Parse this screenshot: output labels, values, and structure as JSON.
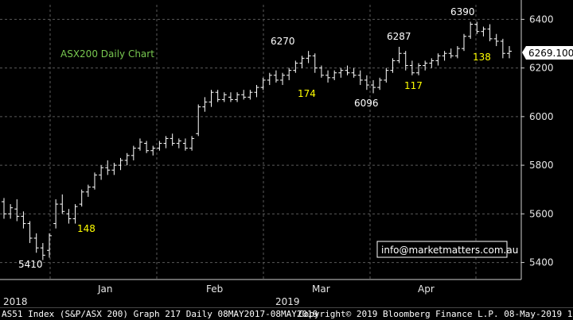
{
  "chart_data": {
    "type": "ohlc",
    "title": "ASX200 Daily Chart",
    "y_ticks": [
      5400,
      5600,
      5800,
      6000,
      6200,
      6400
    ],
    "ylim": [
      5330,
      6460
    ],
    "last_value_label": "6269.100",
    "month_labels": [
      "Jan",
      "Feb",
      "Mar",
      "Apr"
    ],
    "year_labels": [
      "2018",
      "2019"
    ],
    "annotations_white": [
      "5410",
      "6270",
      "6096",
      "6287",
      "6390"
    ],
    "annotations_yellow": [
      "148",
      "174",
      "117",
      "138"
    ],
    "watermark": "info@marketmatters.com.au",
    "series": [
      {
        "name": "",
        "ohlc": [
          [
            5650,
            5665,
            5580,
            5600
          ],
          [
            5600,
            5640,
            5580,
            5625
          ],
          [
            5620,
            5660,
            5570,
            5590
          ],
          [
            5590,
            5610,
            5540,
            5560
          ],
          [
            5560,
            5570,
            5480,
            5500
          ],
          [
            5500,
            5520,
            5440,
            5460
          ],
          [
            5460,
            5480,
            5410,
            5430
          ],
          [
            5450,
            5520,
            5420,
            5510
          ],
          [
            5560,
            5660,
            5540,
            5640
          ],
          [
            5640,
            5680,
            5600,
            5610
          ],
          [
            5600,
            5620,
            5560,
            5580
          ],
          [
            5580,
            5640,
            5560,
            5630
          ],
          [
            5640,
            5700,
            5630,
            5690
          ],
          [
            5690,
            5720,
            5670,
            5710
          ],
          [
            5710,
            5770,
            5700,
            5760
          ],
          [
            5760,
            5800,
            5740,
            5790
          ],
          [
            5790,
            5820,
            5760,
            5780
          ],
          [
            5780,
            5810,
            5760,
            5800
          ],
          [
            5800,
            5830,
            5780,
            5820
          ],
          [
            5820,
            5850,
            5800,
            5840
          ],
          [
            5840,
            5880,
            5820,
            5870
          ],
          [
            5870,
            5910,
            5860,
            5895
          ],
          [
            5890,
            5900,
            5850,
            5860
          ],
          [
            5860,
            5880,
            5840,
            5870
          ],
          [
            5870,
            5900,
            5860,
            5890
          ],
          [
            5890,
            5920,
            5870,
            5910
          ],
          [
            5910,
            5930,
            5880,
            5890
          ],
          [
            5890,
            5910,
            5870,
            5900
          ],
          [
            5890,
            5910,
            5860,
            5870
          ],
          [
            5870,
            5920,
            5860,
            5910
          ],
          [
            5930,
            6050,
            5920,
            6040
          ],
          [
            6040,
            6080,
            6020,
            6060
          ],
          [
            6060,
            6110,
            6040,
            6100
          ],
          [
            6100,
            6110,
            6060,
            6070
          ],
          [
            6070,
            6100,
            6060,
            6090
          ],
          [
            6080,
            6100,
            6060,
            6070
          ],
          [
            6070,
            6100,
            6060,
            6090
          ],
          [
            6090,
            6110,
            6070,
            6080
          ],
          [
            6080,
            6110,
            6070,
            6100
          ],
          [
            6100,
            6130,
            6080,
            6120
          ],
          [
            6120,
            6160,
            6110,
            6150
          ],
          [
            6150,
            6180,
            6130,
            6170
          ],
          [
            6170,
            6190,
            6140,
            6150
          ],
          [
            6150,
            6180,
            6130,
            6170
          ],
          [
            6170,
            6200,
            6150,
            6190
          ],
          [
            6190,
            6230,
            6180,
            6220
          ],
          [
            6220,
            6250,
            6200,
            6240
          ],
          [
            6240,
            6270,
            6220,
            6250
          ],
          [
            6250,
            6260,
            6180,
            6200
          ],
          [
            6200,
            6210,
            6160,
            6170
          ],
          [
            6170,
            6190,
            6140,
            6160
          ],
          [
            6160,
            6190,
            6150,
            6180
          ],
          [
            6180,
            6200,
            6160,
            6190
          ],
          [
            6190,
            6210,
            6170,
            6180
          ],
          [
            6180,
            6200,
            6160,
            6170
          ],
          [
            6170,
            6190,
            6130,
            6150
          ],
          [
            6150,
            6170,
            6110,
            6130
          ],
          [
            6130,
            6150,
            6096,
            6120
          ],
          [
            6120,
            6160,
            6110,
            6150
          ],
          [
            6150,
            6200,
            6140,
            6190
          ],
          [
            6190,
            6240,
            6180,
            6230
          ],
          [
            6230,
            6287,
            6220,
            6260
          ],
          [
            6260,
            6270,
            6190,
            6210
          ],
          [
            6210,
            6230,
            6170,
            6180
          ],
          [
            6180,
            6220,
            6170,
            6210
          ],
          [
            6210,
            6230,
            6190,
            6220
          ],
          [
            6220,
            6240,
            6200,
            6230
          ],
          [
            6230,
            6260,
            6210,
            6250
          ],
          [
            6250,
            6270,
            6230,
            6260
          ],
          [
            6260,
            6280,
            6240,
            6250
          ],
          [
            6250,
            6290,
            6240,
            6280
          ],
          [
            6280,
            6340,
            6270,
            6330
          ],
          [
            6330,
            6390,
            6320,
            6380
          ],
          [
            6380,
            6390,
            6340,
            6350
          ],
          [
            6350,
            6370,
            6330,
            6360
          ],
          [
            6360,
            6380,
            6310,
            6320
          ],
          [
            6320,
            6340,
            6290,
            6310
          ],
          [
            6310,
            6320,
            6240,
            6260
          ],
          [
            6260,
            6290,
            6240,
            6269
          ]
        ]
      }
    ]
  },
  "footer": {
    "left": "AS51 Index (S&P/ASX 200) Graph 217  Daily 08MAY2017-08MAY2019",
    "right": "Copyright© 2019 Bloomberg Finance L.P.    08-May-2019 16:15:03"
  }
}
